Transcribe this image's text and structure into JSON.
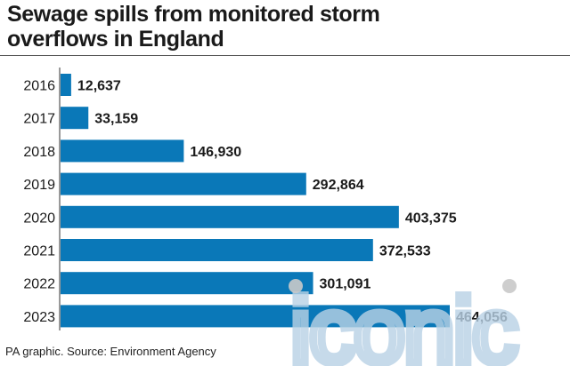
{
  "header": {
    "title_line1": "Sewage spills from monitored storm",
    "title_line2": "overflows in England"
  },
  "footer": {
    "source": "PA graphic. Source: Environment Agency"
  },
  "watermark": {
    "text": "iconic"
  },
  "colors": {
    "bar": "#0a78b8",
    "text": "#1a1a1a",
    "watermark": "#b9d2e6"
  },
  "chart_data": {
    "type": "bar",
    "orientation": "horizontal",
    "title": "Sewage spills from monitored storm overflows in England",
    "categories": [
      "2016",
      "2017",
      "2018",
      "2019",
      "2020",
      "2021",
      "2022",
      "2023"
    ],
    "values": [
      12637,
      33159,
      146930,
      292864,
      403375,
      372533,
      301091,
      464056
    ],
    "value_labels": [
      "12,637",
      "33,159",
      "146,930",
      "292,864",
      "403,375",
      "372,533",
      "301,091",
      "464,056"
    ],
    "xlim": [
      0,
      464056
    ],
    "grid": false,
    "legend": "none"
  }
}
